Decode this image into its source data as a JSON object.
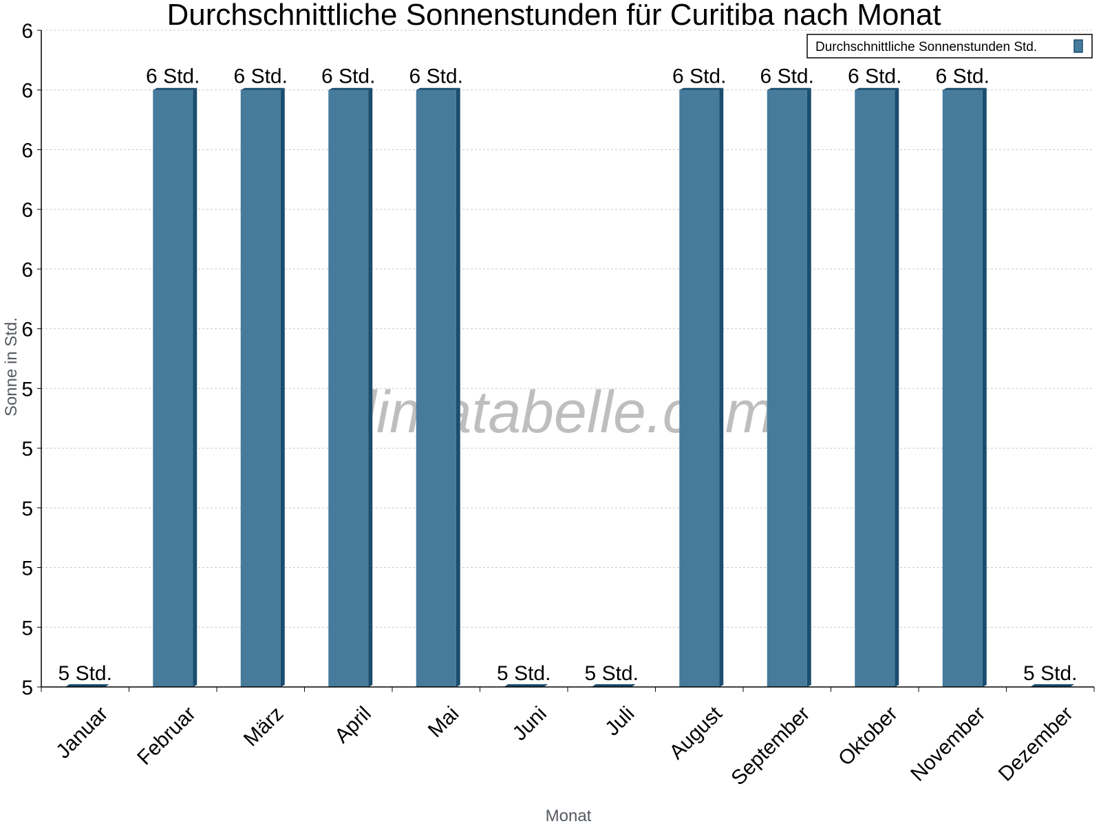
{
  "chart_data": {
    "type": "bar",
    "title": "Durchschnittliche Sonnenstunden für Curitiba nach Monat",
    "xlabel": "Monat",
    "ylabel": "Sonne in Std.",
    "categories": [
      "Januar",
      "Februar",
      "März",
      "April",
      "Mai",
      "Juni",
      "Juli",
      "August",
      "September",
      "Oktober",
      "November",
      "Dezember"
    ],
    "series": [
      {
        "name": "Durchschnittliche Sonnenstunden Std.",
        "values": [
          5.0,
          6.0,
          6.0,
          6.0,
          6.0,
          5.0,
          5.0,
          6.0,
          6.0,
          6.0,
          6.0,
          5.0
        ],
        "labels": [
          "5 Std.",
          "6 Std.",
          "6 Std.",
          "6 Std.",
          "6 Std.",
          "5 Std.",
          "5 Std.",
          "6 Std.",
          "6 Std.",
          "6 Std.",
          "6 Std.",
          "5 Std."
        ]
      }
    ],
    "ylim": [
      5.0,
      6.1
    ],
    "yticks": [
      5.0,
      5.1,
      5.2,
      5.3,
      5.4,
      5.5,
      5.6,
      5.7,
      5.8,
      5.9,
      6.0,
      6.1
    ],
    "ytick_labels": [
      "5",
      "5",
      "5",
      "5",
      "5",
      "5",
      "6",
      "6",
      "6",
      "6",
      "6",
      "6"
    ],
    "grid": true,
    "legend_position": "top-right",
    "watermark": "klimatabelle.com",
    "colors": {
      "bar_front": "#467b9c",
      "bar_side": "#1b4d6e",
      "grid": "#c8c8c8",
      "axis": "#000000"
    }
  }
}
